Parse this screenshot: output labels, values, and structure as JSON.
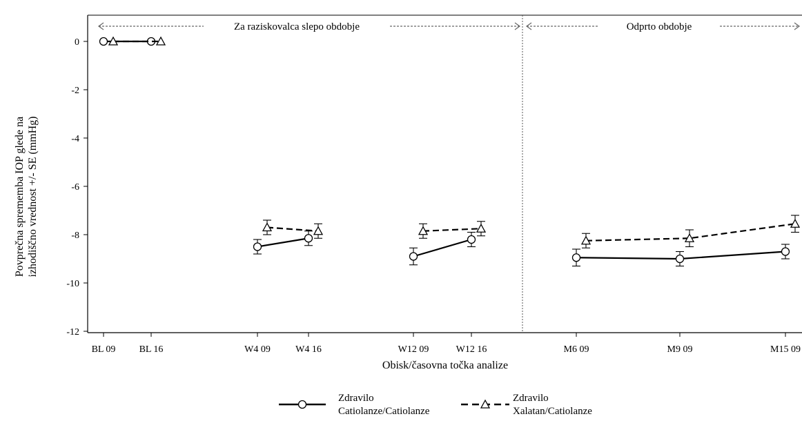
{
  "chart_data": {
    "type": "line",
    "title": "",
    "xlabel": "Obisk/časovna točka analize",
    "ylabel_lines": [
      "Povprečna sprememba IOP glede na",
      "izhodiščno vrednost +/- SE (mmHg)"
    ],
    "ylim": [
      -12,
      0
    ],
    "yticks": [
      0,
      -2,
      -4,
      -6,
      -8,
      -10,
      -12
    ],
    "categories": [
      "BL 09",
      "BL 16",
      "W4 09",
      "W4 16",
      "W12 09",
      "W12 16",
      "M6 09",
      "M9 09",
      "M15 09"
    ],
    "segments": [
      [
        0,
        1
      ],
      [
        2,
        3
      ],
      [
        4,
        5
      ],
      [
        6,
        7,
        8
      ]
    ],
    "periods": [
      {
        "label": "Za raziskovalca slepo obdobje",
        "from_index": 0,
        "to_index": 5
      },
      {
        "label": "Odprto obdobje",
        "from_index": 6,
        "to_index": 8
      }
    ],
    "series": [
      {
        "name": "Zdravilo Catiolanze/Catiolanze",
        "legend_lines": [
          "Zdravilo",
          "Catiolanze/Catiolanze"
        ],
        "marker": "circle",
        "line": "solid",
        "values": [
          0,
          0,
          -8.5,
          -8.15,
          -8.9,
          -8.2,
          -8.95,
          -9.0,
          -8.7
        ],
        "se": [
          0,
          0,
          0.3,
          0.3,
          0.35,
          0.3,
          0.35,
          0.3,
          0.3
        ]
      },
      {
        "name": "Zdravilo Xalatan/Catiolanze",
        "legend_lines": [
          "Zdravilo",
          "Xalatan/Catiolanze"
        ],
        "marker": "triangle",
        "line": "dashed",
        "values": [
          0,
          0,
          -7.7,
          -7.85,
          -7.85,
          -7.75,
          -8.25,
          -8.15,
          -7.55
        ],
        "se": [
          0,
          0,
          0.3,
          0.3,
          0.3,
          0.3,
          0.3,
          0.35,
          0.35
        ]
      }
    ]
  }
}
